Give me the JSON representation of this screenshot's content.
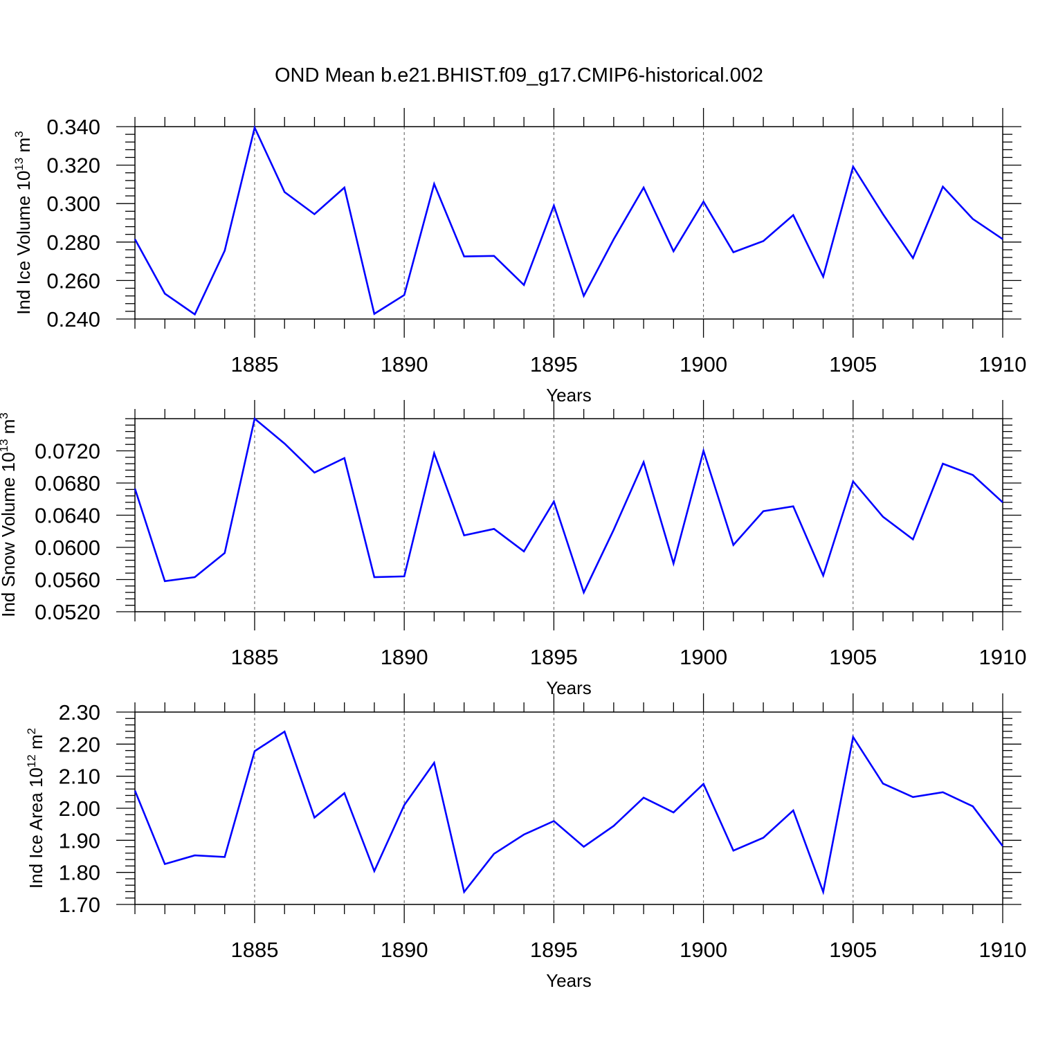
{
  "figure": {
    "title": "OND Mean b.e21.BHIST.f09_g17.CMIP6-historical.002",
    "line_color": "#0000ff"
  },
  "chart_data": [
    {
      "type": "line",
      "xlabel": "Years",
      "ylabel": "Ind Ice Volume 10",
      "ylabel_sup": "13",
      "ylabel_unit": " m",
      "ylabel_unit_sup": "3",
      "xlim": [
        1881,
        1910
      ],
      "ylim": [
        0.24,
        0.34
      ],
      "x_ticks": [
        1885,
        1890,
        1895,
        1900,
        1905,
        1910
      ],
      "x_tick_labels": [
        "1885",
        "1890",
        "1895",
        "1900",
        "1905",
        "1910"
      ],
      "y_ticks": [
        0.24,
        0.26,
        0.28,
        0.3,
        0.32,
        0.34
      ],
      "y_tick_labels": [
        "0.240",
        "0.260",
        "0.280",
        "0.300",
        "0.320",
        "0.340"
      ],
      "grid": "vertical dashed at major x ticks",
      "x": [
        1881,
        1882,
        1883,
        1884,
        1885,
        1886,
        1887,
        1888,
        1889,
        1890,
        1891,
        1892,
        1893,
        1894,
        1895,
        1896,
        1897,
        1898,
        1899,
        1900,
        1901,
        1902,
        1903,
        1904,
        1905,
        1906,
        1907,
        1908,
        1909,
        1910
      ],
      "series": [
        {
          "values": [
            0.2815,
            0.2532,
            0.2424,
            0.2755,
            0.3395,
            0.306,
            0.2945,
            0.3083,
            0.2427,
            0.2525,
            0.3102,
            0.2725,
            0.2728,
            0.2577,
            0.299,
            0.252,
            0.2815,
            0.3083,
            0.2752,
            0.301,
            0.2747,
            0.2805,
            0.294,
            0.262,
            0.3192,
            0.2945,
            0.2717,
            0.3088,
            0.292,
            0.2815
          ]
        }
      ]
    },
    {
      "type": "line",
      "xlabel": "Years",
      "ylabel": "Ind Snow Volume 10",
      "ylabel_sup": "13",
      "ylabel_unit": " m",
      "ylabel_unit_sup": "3",
      "xlim": [
        1881,
        1910
      ],
      "ylim": [
        0.052,
        0.076
      ],
      "x_ticks": [
        1885,
        1890,
        1895,
        1900,
        1905,
        1910
      ],
      "x_tick_labels": [
        "1885",
        "1890",
        "1895",
        "1900",
        "1905",
        "1910"
      ],
      "y_ticks": [
        0.052,
        0.056,
        0.06,
        0.064,
        0.068,
        0.072
      ],
      "y_tick_labels": [
        "0.0520",
        "0.0560",
        "0.0600",
        "0.0640",
        "0.0680",
        "0.0720"
      ],
      "grid": "vertical dashed at major x ticks",
      "x": [
        1881,
        1882,
        1883,
        1884,
        1885,
        1886,
        1887,
        1888,
        1889,
        1890,
        1891,
        1892,
        1893,
        1894,
        1895,
        1896,
        1897,
        1898,
        1899,
        1900,
        1901,
        1902,
        1903,
        1904,
        1905,
        1906,
        1907,
        1908,
        1909,
        1910
      ],
      "series": [
        {
          "values": [
            0.0673,
            0.0558,
            0.0563,
            0.0593,
            0.076,
            0.0729,
            0.0693,
            0.0711,
            0.0563,
            0.0564,
            0.0717,
            0.0615,
            0.0623,
            0.0595,
            0.0657,
            0.0544,
            0.0622,
            0.0706,
            0.058,
            0.072,
            0.0603,
            0.0645,
            0.0651,
            0.0565,
            0.0682,
            0.0638,
            0.061,
            0.0704,
            0.069,
            0.0656
          ]
        }
      ]
    },
    {
      "type": "line",
      "xlabel": "Years",
      "ylabel": "Ind Ice Area 10",
      "ylabel_sup": "12",
      "ylabel_unit": " m",
      "ylabel_unit_sup": "2",
      "xlim": [
        1881,
        1910
      ],
      "ylim": [
        1.7,
        2.3
      ],
      "x_ticks": [
        1885,
        1890,
        1895,
        1900,
        1905,
        1910
      ],
      "x_tick_labels": [
        "1885",
        "1890",
        "1895",
        "1900",
        "1905",
        "1910"
      ],
      "y_ticks": [
        1.7,
        1.8,
        1.9,
        2.0,
        2.1,
        2.2,
        2.3
      ],
      "y_tick_labels": [
        "1.70",
        "1.80",
        "1.90",
        "2.00",
        "2.10",
        "2.20",
        "2.30"
      ],
      "grid": "vertical dashed at major x ticks",
      "x": [
        1881,
        1882,
        1883,
        1884,
        1885,
        1886,
        1887,
        1888,
        1889,
        1890,
        1891,
        1892,
        1893,
        1894,
        1895,
        1896,
        1897,
        1898,
        1899,
        1900,
        1901,
        1902,
        1903,
        1904,
        1905,
        1906,
        1907,
        1908,
        1909,
        1910
      ],
      "series": [
        {
          "values": [
            2.055,
            1.826,
            1.853,
            1.848,
            2.178,
            2.239,
            1.971,
            2.047,
            1.804,
            2.01,
            2.142,
            1.739,
            1.858,
            1.918,
            1.96,
            1.88,
            1.945,
            2.033,
            1.987,
            2.076,
            1.868,
            1.908,
            1.993,
            1.739,
            2.222,
            2.077,
            2.035,
            2.05,
            2.006,
            1.882
          ]
        }
      ]
    }
  ]
}
